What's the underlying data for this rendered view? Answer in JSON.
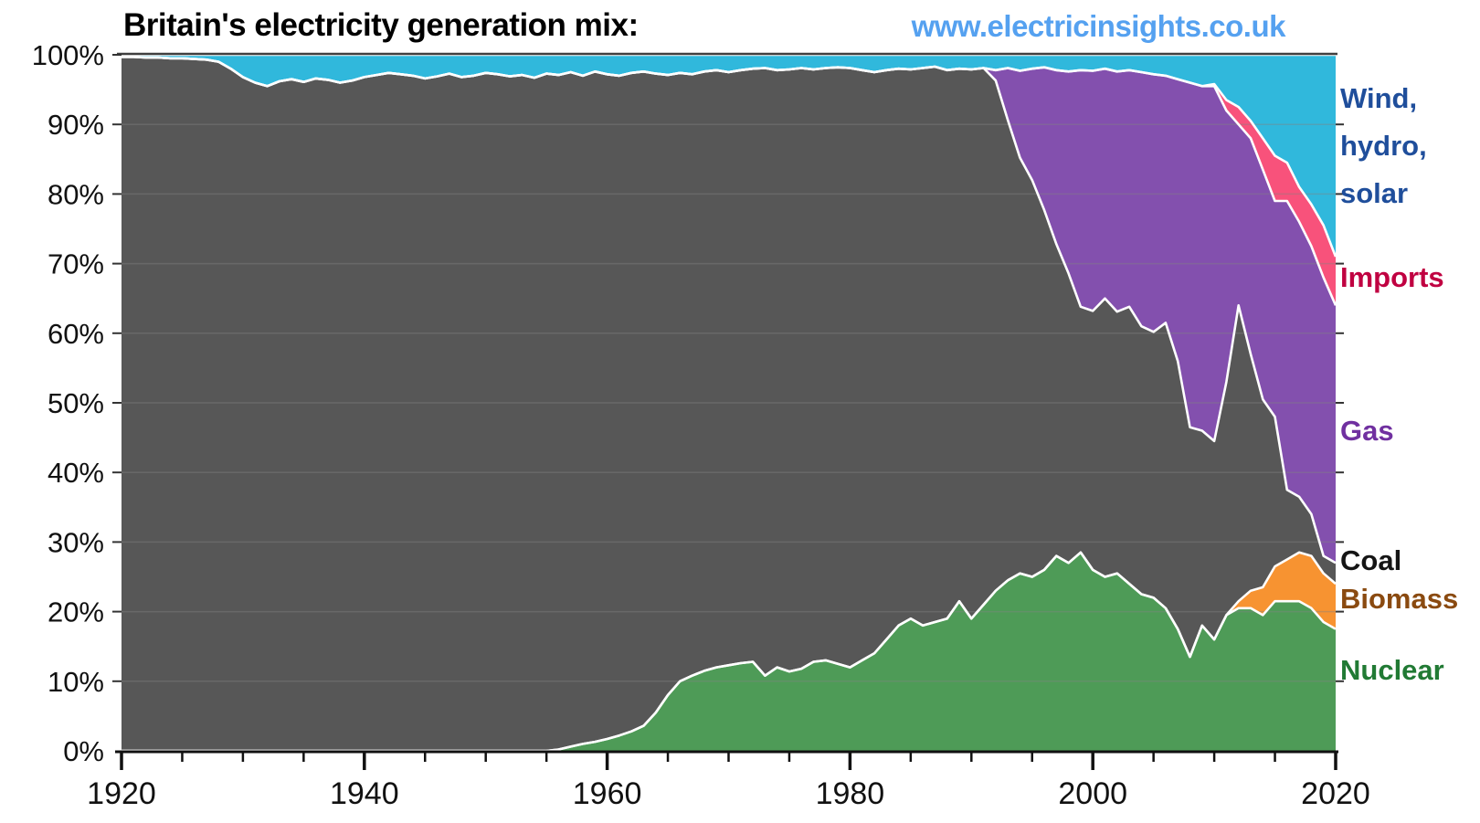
{
  "header": {
    "title": "Britain's electricity generation mix:",
    "url": "www.electricinsights.co.uk",
    "url_color": "#55A1F0"
  },
  "chart_data": {
    "type": "area",
    "stacked": true,
    "title": "Britain's electricity generation mix",
    "x_start": 1920,
    "x_end": 2020,
    "x_step": 1,
    "ylim": [
      0,
      100
    ],
    "y_unit": "percent",
    "grid": "horizontal",
    "legend_position": "right",
    "x_axis": {
      "major_tick_labels": [
        "1920",
        "1940",
        "1960",
        "1980",
        "2000",
        "2020"
      ],
      "major_tick_years": [
        1920,
        1940,
        1960,
        1980,
        2000,
        2020
      ],
      "minor_tick_step_years": 5
    },
    "y_axis": {
      "tick_labels": [
        "0%",
        "10%",
        "20%",
        "30%",
        "40%",
        "50%",
        "60%",
        "70%",
        "80%",
        "90%",
        "100%"
      ],
      "tick_values": [
        0,
        10,
        20,
        30,
        40,
        50,
        60,
        70,
        80,
        90,
        100
      ]
    },
    "series": [
      {
        "name": "nuclear",
        "label": "Nuclear",
        "color": "#4E9B57",
        "values": [
          0,
          0,
          0,
          0,
          0,
          0,
          0,
          0,
          0,
          0,
          0,
          0,
          0,
          0,
          0,
          0,
          0,
          0,
          0,
          0,
          0,
          0,
          0,
          0,
          0,
          0,
          0,
          0,
          0,
          0,
          0,
          0,
          0,
          0,
          0,
          0,
          0.2,
          0.6,
          1,
          1.3,
          1.7,
          2.2,
          2.8,
          3.6,
          5.5,
          8,
          10,
          10.8,
          11.5,
          12,
          12.3,
          12.6,
          12.8,
          10.8,
          12,
          11.4,
          11.8,
          12.8,
          13,
          12.5,
          12,
          13,
          14,
          16,
          18,
          19,
          18,
          18.5,
          19,
          21.5,
          19,
          21,
          23,
          24.5,
          25.5,
          25,
          26,
          28,
          27,
          28.5,
          26,
          25,
          25.5,
          24,
          22.5,
          22,
          20.5,
          17.5,
          13.5,
          18,
          16,
          19.5,
          20.5,
          20.5,
          19.5,
          21.5,
          21.5,
          21.5,
          20.5,
          18.5,
          17.5
        ]
      },
      {
        "name": "biomass",
        "label": "Biomass",
        "color": "#F79331",
        "values": [
          0,
          0,
          0,
          0,
          0,
          0,
          0,
          0,
          0,
          0,
          0,
          0,
          0,
          0,
          0,
          0,
          0,
          0,
          0,
          0,
          0,
          0,
          0,
          0,
          0,
          0,
          0,
          0,
          0,
          0,
          0,
          0,
          0,
          0,
          0,
          0,
          0,
          0,
          0,
          0,
          0,
          0,
          0,
          0,
          0,
          0,
          0,
          0,
          0,
          0,
          0,
          0,
          0,
          0,
          0,
          0,
          0,
          0,
          0,
          0,
          0,
          0,
          0,
          0,
          0,
          0,
          0,
          0,
          0,
          0,
          0,
          0,
          0,
          0,
          0,
          0,
          0,
          0,
          0,
          0,
          0,
          0,
          0,
          0,
          0,
          0,
          0,
          0,
          0,
          0,
          0,
          0,
          1,
          2.5,
          4,
          5,
          6,
          7,
          7.5,
          7,
          6.5
        ]
      },
      {
        "name": "coal",
        "label": "Coal",
        "color": "#575757",
        "values": [
          99.7,
          99.7,
          99.6,
          99.6,
          99.5,
          99.5,
          99.4,
          99.3,
          99,
          98,
          96.8,
          96,
          95.5,
          96.2,
          96.5,
          96.1,
          96.6,
          96.4,
          96,
          96.3,
          96.8,
          97.1,
          97.4,
          97.2,
          97,
          96.6,
          96.9,
          97.3,
          96.8,
          97,
          97.4,
          97.2,
          96.9,
          97.1,
          96.7,
          97.3,
          96.9,
          96.9,
          96,
          96.3,
          95.5,
          94.8,
          94.6,
          94,
          91.8,
          89.1,
          87.4,
          86.4,
          86.1,
          85.8,
          85.2,
          85.2,
          85.2,
          87.3,
          85.8,
          86.5,
          86.3,
          85.1,
          85.1,
          85.7,
          86.1,
          84.8,
          83.5,
          81.8,
          80,
          78.9,
          80.1,
          79.8,
          78.8,
          76.5,
          78.9,
          77.1,
          73.3,
          66.1,
          59.7,
          57,
          51.7,
          44.8,
          41.6,
          35.3,
          37.2,
          40,
          37.6,
          39.8,
          38.5,
          38.2,
          41,
          38.5,
          33,
          28,
          28.5,
          33.5,
          42.5,
          34,
          27,
          21.5,
          10,
          8,
          6,
          2.5,
          3
        ]
      },
      {
        "name": "gas",
        "label": "Gas",
        "color": "#8350AE",
        "values": [
          0,
          0,
          0,
          0,
          0,
          0,
          0,
          0,
          0,
          0,
          0,
          0,
          0,
          0,
          0,
          0,
          0,
          0,
          0,
          0,
          0,
          0,
          0,
          0,
          0,
          0,
          0,
          0,
          0,
          0,
          0,
          0,
          0,
          0,
          0,
          0,
          0,
          0,
          0,
          0,
          0,
          0,
          0,
          0,
          0,
          0,
          0,
          0,
          0,
          0,
          0,
          0,
          0,
          0,
          0,
          0,
          0,
          0,
          0,
          0,
          0,
          0,
          0,
          0,
          0,
          0,
          0,
          0,
          0,
          0,
          0,
          0,
          1.5,
          7.5,
          12.5,
          16,
          20.5,
          25,
          29,
          34,
          34.5,
          33,
          34.5,
          34,
          36.5,
          37,
          35.5,
          40.5,
          49.5,
          49.5,
          51,
          39,
          26,
          31,
          33,
          31,
          41.5,
          39.5,
          38.5,
          40,
          37
        ]
      },
      {
        "name": "imports",
        "label": "Imports",
        "color": "#F8527B",
        "values": [
          0,
          0,
          0,
          0,
          0,
          0,
          0,
          0,
          0,
          0,
          0,
          0,
          0,
          0,
          0,
          0,
          0,
          0,
          0,
          0,
          0,
          0,
          0,
          0,
          0,
          0,
          0,
          0,
          0,
          0,
          0,
          0,
          0,
          0,
          0,
          0,
          0,
          0,
          0,
          0,
          0,
          0,
          0,
          0,
          0,
          0,
          0,
          0,
          0,
          0,
          0,
          0,
          0,
          0,
          0,
          0,
          0,
          0,
          0,
          0,
          0,
          0,
          0,
          0,
          0,
          0,
          0,
          0,
          0,
          0,
          0,
          0,
          0,
          0,
          0,
          0,
          0,
          0,
          0,
          0,
          0,
          0,
          0,
          0,
          0,
          0,
          0,
          0,
          0,
          0,
          0.3,
          1.5,
          2.5,
          2.5,
          4.5,
          6.5,
          5.5,
          5,
          6,
          7.5,
          7
        ]
      },
      {
        "name": "wind_hydro_solar",
        "label": "Wind, hydro, solar",
        "color": "#30B8DC",
        "values": [
          0.3,
          0.3,
          0.4,
          0.4,
          0.5,
          0.5,
          0.6,
          0.7,
          1,
          2,
          3.2,
          4,
          4.5,
          3.8,
          3.5,
          3.9,
          3.4,
          3.6,
          4,
          3.7,
          3.2,
          2.9,
          2.6,
          2.8,
          3,
          3.4,
          3.1,
          2.7,
          3.2,
          3,
          2.6,
          2.8,
          3.1,
          2.9,
          3.3,
          2.7,
          2.9,
          2.5,
          3,
          2.4,
          2.8,
          3,
          2.6,
          2.4,
          2.7,
          2.9,
          2.6,
          2.8,
          2.4,
          2.2,
          2.5,
          2.2,
          2,
          1.9,
          2.2,
          2.1,
          1.9,
          2.1,
          1.9,
          1.8,
          1.9,
          2.2,
          2.5,
          2.2,
          2,
          2.1,
          1.9,
          1.7,
          2.2,
          2,
          2.1,
          1.9,
          2.2,
          1.9,
          2.3,
          2,
          1.8,
          2.2,
          2.4,
          2.2,
          2.3,
          2,
          2.4,
          2.2,
          2.5,
          2.8,
          3,
          3.5,
          4,
          4.5,
          4.2,
          6.5,
          7.5,
          9.5,
          12,
          14.5,
          15.5,
          19,
          21.5,
          24.5,
          29
        ]
      }
    ],
    "legend": [
      {
        "lines": [
          "Wind,",
          "hydro,",
          "solar"
        ],
        "color": "#1F4E9B",
        "series": "wind_hydro_solar"
      },
      {
        "lines": [
          "Imports"
        ],
        "color": "#C00041",
        "series": "imports"
      },
      {
        "lines": [
          "Gas"
        ],
        "color": "#7030A0",
        "series": "gas"
      },
      {
        "lines": [
          "Coal"
        ],
        "color": "#151515",
        "series": "coal"
      },
      {
        "lines": [
          "Biomass"
        ],
        "color": "#8A4A10",
        "series": "biomass"
      },
      {
        "lines": [
          "Nuclear"
        ],
        "color": "#217A34",
        "series": "nuclear"
      }
    ]
  }
}
